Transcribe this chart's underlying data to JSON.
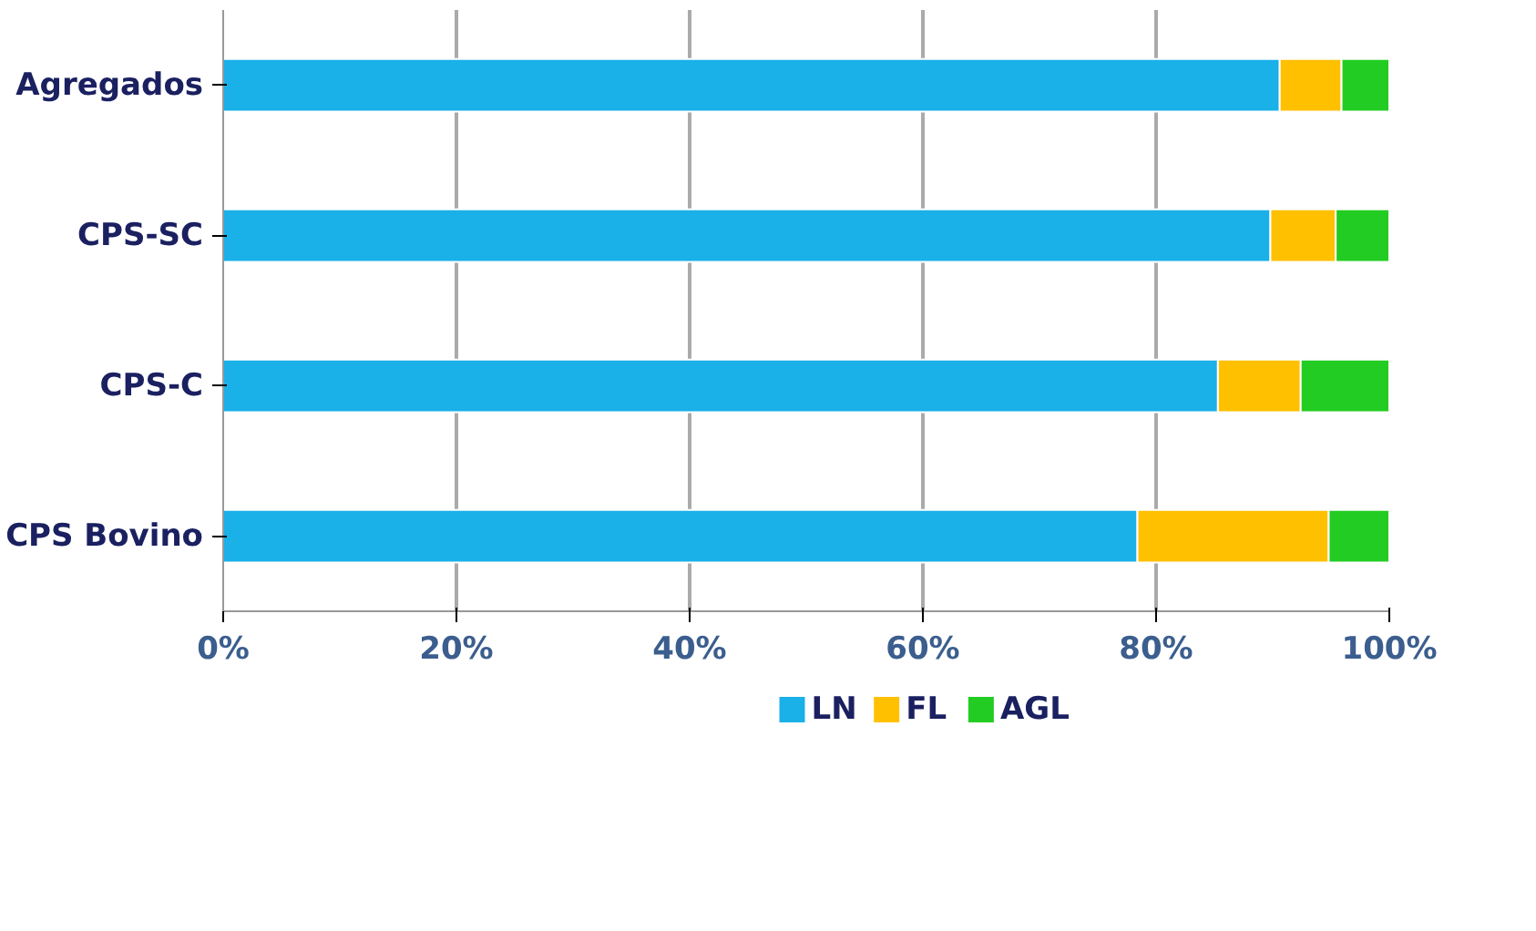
{
  "chart_data": {
    "type": "bar",
    "orientation": "horizontal",
    "stacked": true,
    "categories": [
      "Agregados",
      "CPS-SC",
      "CPS-C",
      "CPS Bovino"
    ],
    "series": [
      {
        "name": "LN",
        "color": "#1ab0e8",
        "values": [
          90.6,
          89.8,
          85.3,
          78.4
        ]
      },
      {
        "name": "FL",
        "color": "#ffc000",
        "values": [
          5.3,
          5.6,
          7.1,
          16.4
        ]
      },
      {
        "name": "AGL",
        "color": "#22cc22",
        "values": [
          4.1,
          4.6,
          7.6,
          5.2
        ]
      }
    ],
    "xlim": [
      0,
      100
    ],
    "xticks": [
      {
        "value": 0,
        "label": "0%"
      },
      {
        "value": 20,
        "label": "20%"
      },
      {
        "value": 40,
        "label": "40%"
      },
      {
        "value": 60,
        "label": "60%"
      },
      {
        "value": 80,
        "label": "80%"
      },
      {
        "value": 100,
        "label": "100%"
      }
    ],
    "grid": "x",
    "legend": "bottom"
  }
}
